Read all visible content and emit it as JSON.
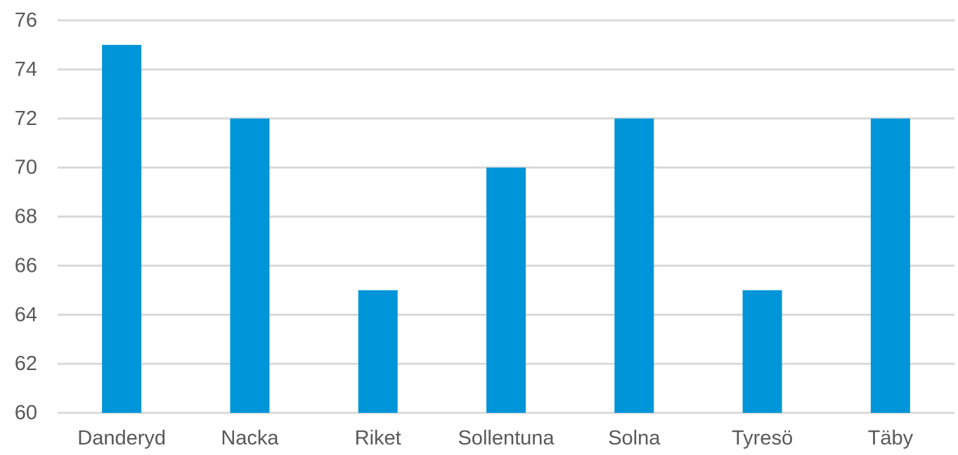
{
  "chart_data": {
    "type": "bar",
    "title": "",
    "xlabel": "",
    "ylabel": "",
    "categories": [
      "Danderyd",
      "Nacka",
      "Riket",
      "Sollentuna",
      "Solna",
      "Tyresö",
      "Täby"
    ],
    "values": [
      75,
      72,
      65,
      70,
      72,
      65,
      72
    ],
    "ylim": [
      60,
      76
    ],
    "yticks": [
      60,
      62,
      64,
      66,
      68,
      70,
      72,
      74,
      76
    ],
    "grid": true,
    "legend": "none",
    "bar_color": "#0095d8",
    "grid_color": "#d9d9d9",
    "text_color": "#595959"
  }
}
